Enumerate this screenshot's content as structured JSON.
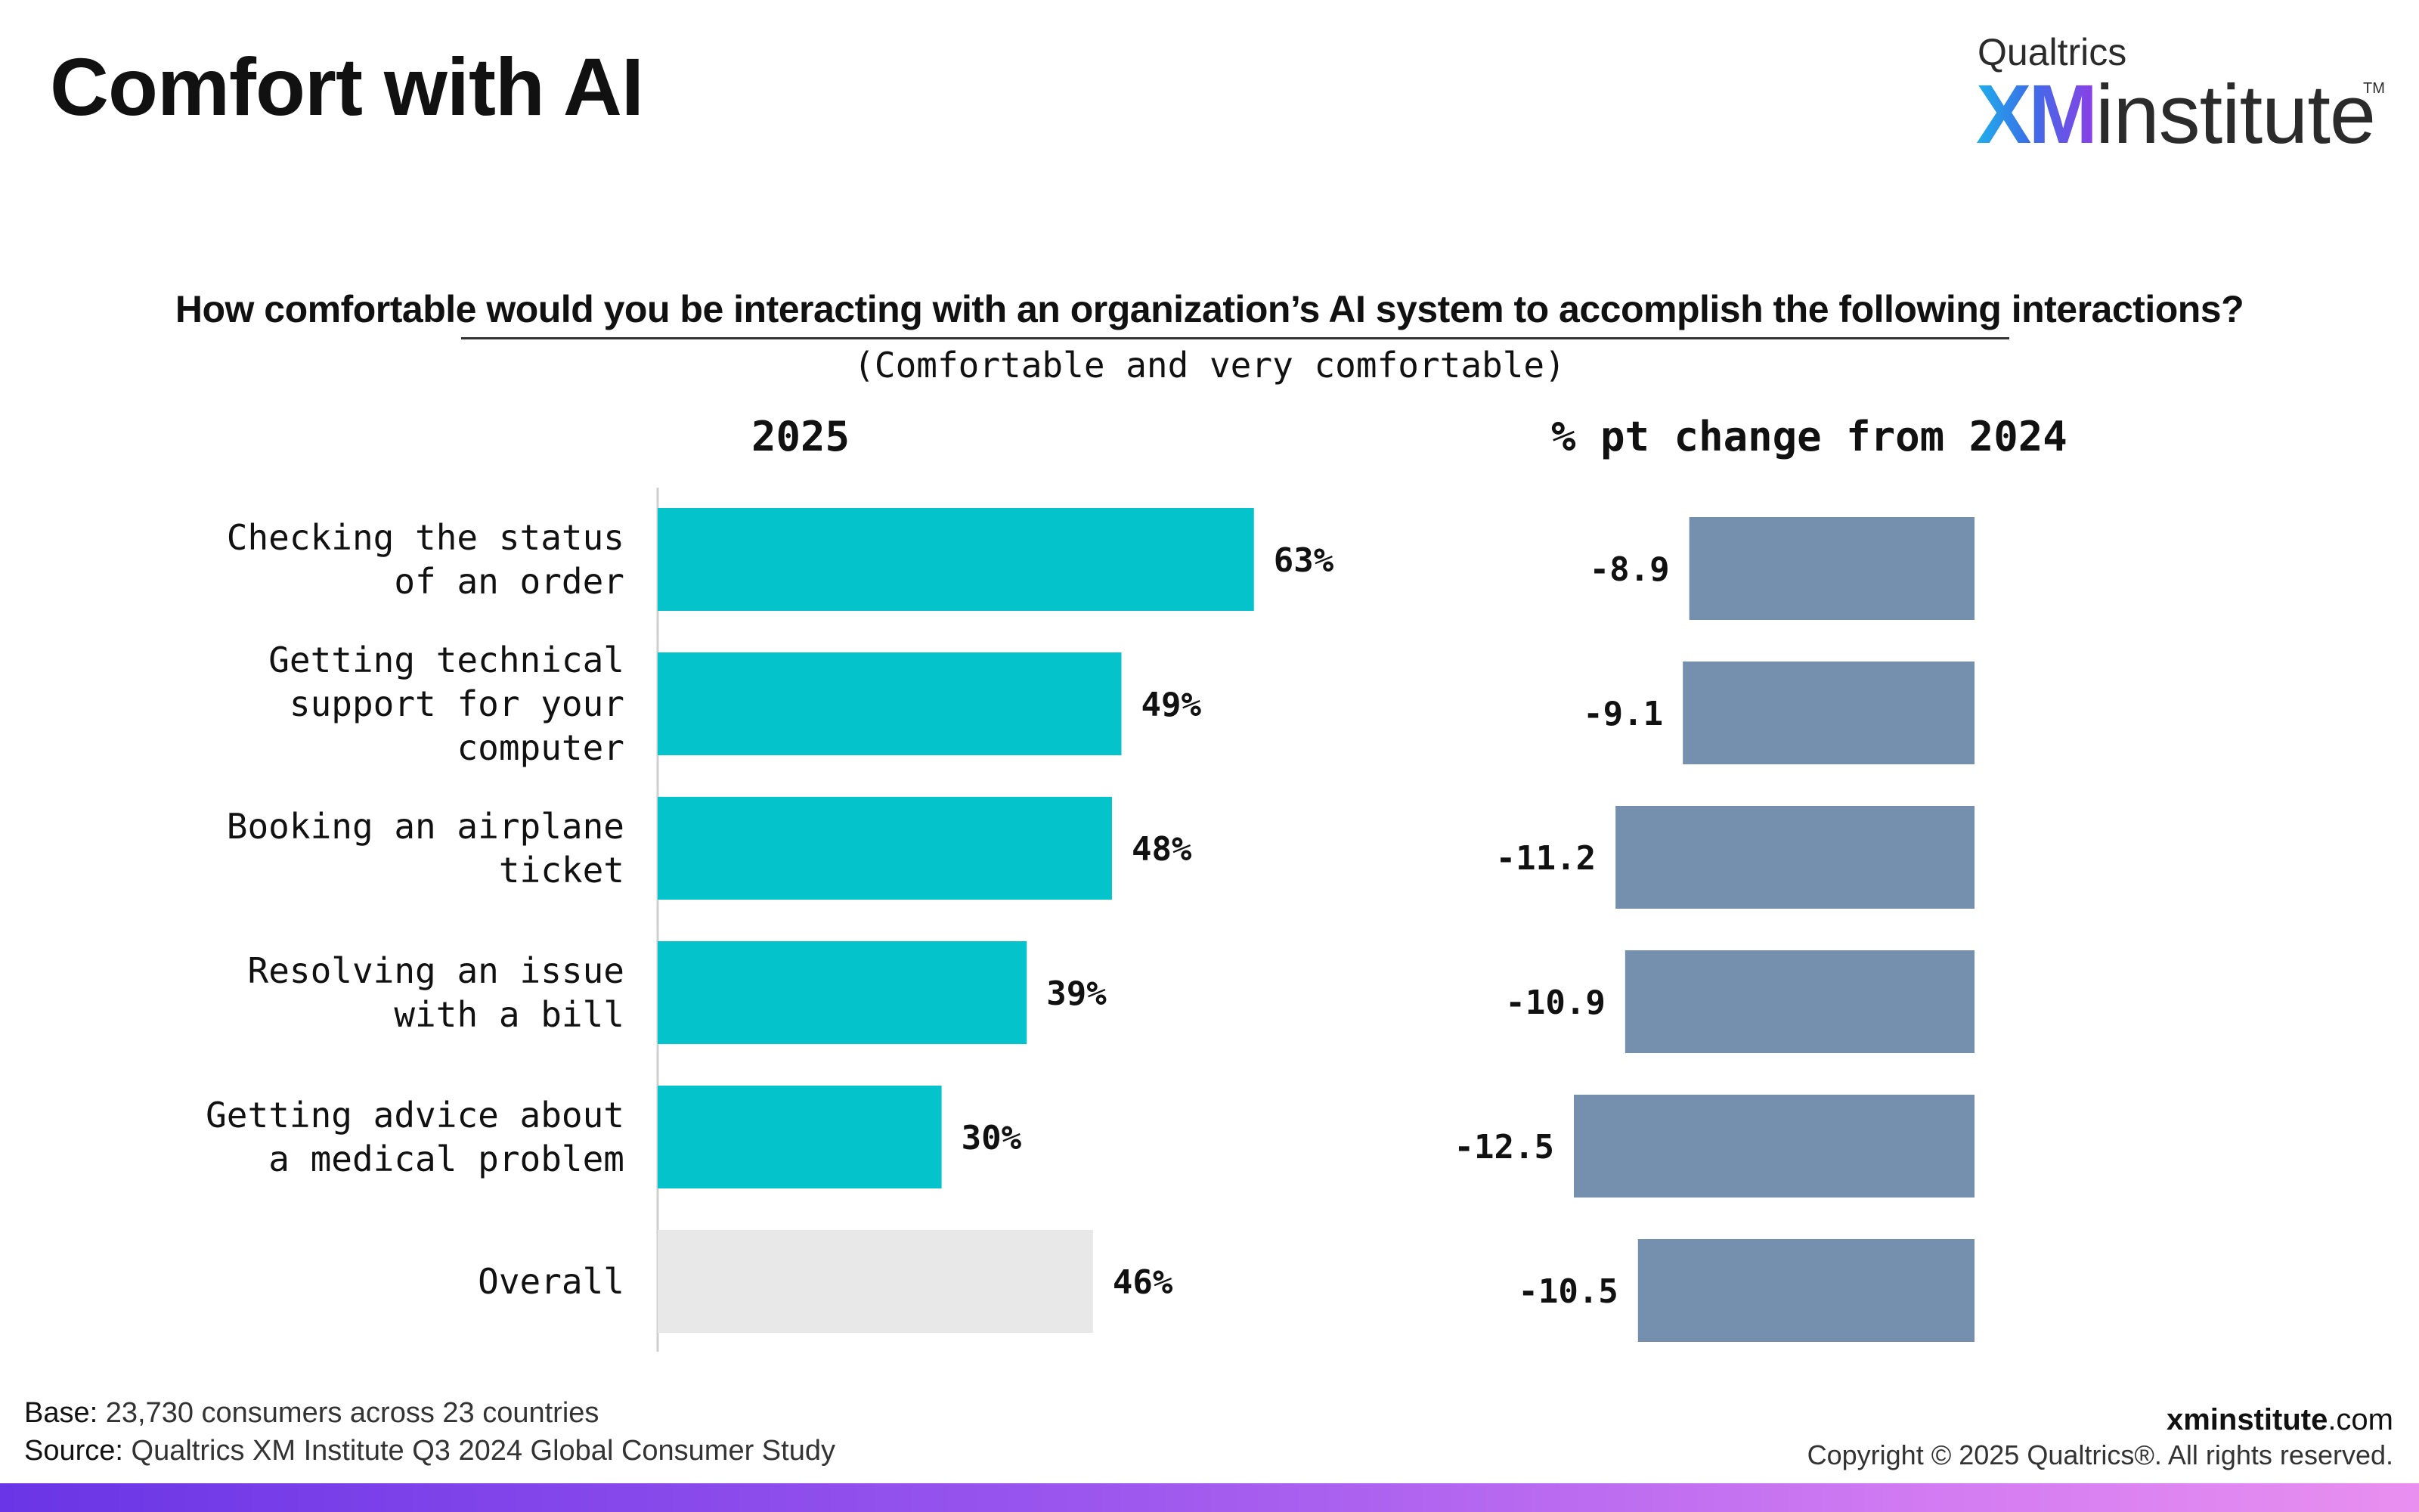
{
  "header": {
    "title": "Comfort with AI",
    "logo_top": "Qualtrics",
    "logo_xm": "XM",
    "logo_institute": "institute",
    "logo_tm": "TM"
  },
  "question": "How comfortable would you be interacting with an organization’s AI system to accomplish the following interactions?",
  "subquestion": "(Comfortable and very comfortable)",
  "chart_data": [
    {
      "type": "bar",
      "orientation": "horizontal",
      "title": "2025",
      "categories": [
        [
          "Checking the status",
          "of an order"
        ],
        [
          "Getting technical",
          "support for your",
          "computer"
        ],
        [
          "Booking an airplane",
          "ticket"
        ],
        [
          "Resolving an issue",
          "with a bill"
        ],
        [
          "Getting advice about",
          "a medical problem"
        ],
        [
          "Overall"
        ]
      ],
      "values": [
        63,
        49,
        48,
        39,
        30,
        46
      ],
      "value_labels": [
        "63%",
        "49%",
        "48%",
        "39%",
        "30%",
        "46%"
      ],
      "colors": [
        "#05c3cb",
        "#05c3cb",
        "#05c3cb",
        "#05c3cb",
        "#05c3cb",
        "#e8e8e8"
      ],
      "xlim": [
        0,
        100
      ],
      "grid": false
    },
    {
      "type": "bar",
      "orientation": "horizontal",
      "title": "% pt change from 2024",
      "categories": [
        [
          "Checking the status",
          "of an order"
        ],
        [
          "Getting technical",
          "support for your",
          "computer"
        ],
        [
          "Booking an airplane",
          "ticket"
        ],
        [
          "Resolving an issue",
          "with a bill"
        ],
        [
          "Getting advice about",
          "a medical problem"
        ],
        [
          "Overall"
        ]
      ],
      "values": [
        -8.9,
        -9.1,
        -11.2,
        -10.9,
        -12.5,
        -10.5
      ],
      "value_labels": [
        "-8.9",
        "-9.1",
        "-11.2",
        "-10.9",
        "-12.5",
        "-10.5"
      ],
      "color": "#7490ae",
      "grid": false
    }
  ],
  "footer": {
    "base_label": "Base:",
    "base_text": "23,730 consumers across 23 countries",
    "source_label": "Source:",
    "source_text": "Qualtrics XM Institute Q3 2024 Global Consumer Study",
    "site_bold": "xminstitute",
    "site_suffix": ".com",
    "copyright": "Copyright © 2025 Qualtrics®. All rights reserved."
  }
}
